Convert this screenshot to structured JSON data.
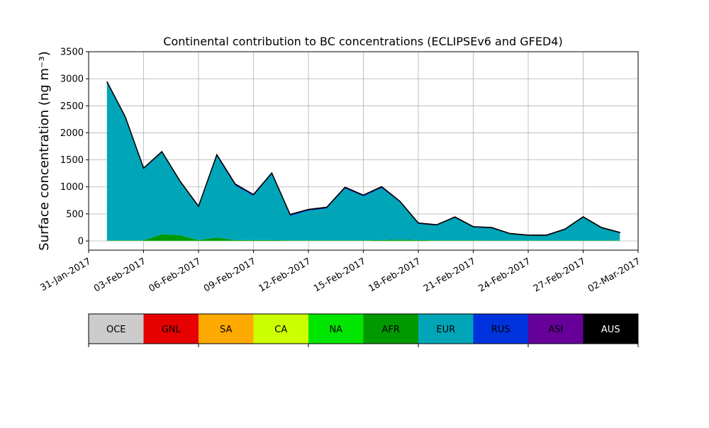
{
  "chart_data": {
    "type": "stacked_area",
    "title": "Continental contribution to BC concentrations (ECLIPSEv6 and GFED4)",
    "y_label": "Surface concentration (ng m⁻³)",
    "x": [
      "2017-02-01",
      "2017-02-02",
      "2017-02-03",
      "2017-02-04",
      "2017-02-05",
      "2017-02-06",
      "2017-02-07",
      "2017-02-08",
      "2017-02-09",
      "2017-02-10",
      "2017-02-11",
      "2017-02-12",
      "2017-02-13",
      "2017-02-14",
      "2017-02-15",
      "2017-02-16",
      "2017-02-17",
      "2017-02-18",
      "2017-02-19",
      "2017-02-20",
      "2017-02-21",
      "2017-02-22",
      "2017-02-23",
      "2017-02-24",
      "2017-02-25",
      "2017-02-26",
      "2017-02-27",
      "2017-02-28",
      "2017-03-01"
    ],
    "series": [
      {
        "name": "OCE",
        "color": "#cccccc",
        "text_color": "#000000",
        "values": [
          0,
          0,
          0,
          0,
          0,
          0,
          0,
          0,
          0,
          0,
          0,
          0,
          0,
          0,
          0,
          0,
          0,
          0,
          0,
          0,
          0,
          0,
          0,
          0,
          0,
          0,
          0,
          0,
          0
        ]
      },
      {
        "name": "GNL",
        "color": "#e60000",
        "text_color": "#000000",
        "values": [
          0,
          0,
          0,
          0,
          0,
          0,
          0,
          0,
          0,
          0,
          0,
          0,
          0,
          0,
          0,
          0,
          0,
          0,
          0,
          0,
          0,
          0,
          0,
          0,
          0,
          0,
          0,
          0,
          0
        ]
      },
      {
        "name": "SA",
        "color": "#ffaa00",
        "text_color": "#000000",
        "values": [
          0,
          0,
          0,
          0,
          0,
          0,
          0,
          0,
          0,
          0,
          0,
          0,
          0,
          0,
          0,
          0,
          0,
          0,
          0,
          0,
          0,
          0,
          0,
          0,
          0,
          0,
          0,
          0,
          0
        ]
      },
      {
        "name": "CA",
        "color": "#ccff00",
        "text_color": "#000000",
        "values": [
          2,
          2,
          2,
          2,
          2,
          2,
          2,
          2,
          2,
          2,
          2,
          2,
          2,
          2,
          2,
          2,
          2,
          2,
          2,
          2,
          2,
          2,
          2,
          2,
          2,
          2,
          2,
          2,
          2
        ]
      },
      {
        "name": "NA",
        "color": "#00e600",
        "text_color": "#000000",
        "values": [
          3,
          3,
          3,
          3,
          3,
          3,
          3,
          3,
          3,
          3,
          3,
          3,
          3,
          3,
          3,
          3,
          3,
          3,
          3,
          3,
          3,
          3,
          3,
          3,
          3,
          3,
          3,
          3,
          3
        ]
      },
      {
        "name": "AFR",
        "color": "#009900",
        "text_color": "#000000",
        "values": [
          5,
          5,
          5,
          120,
          100,
          10,
          60,
          10,
          10,
          10,
          5,
          5,
          5,
          5,
          5,
          10,
          20,
          10,
          5,
          5,
          5,
          3,
          3,
          3,
          3,
          3,
          3,
          3,
          3
        ]
      },
      {
        "name": "EUR",
        "color": "#00a6b8",
        "text_color": "#000000",
        "values": [
          2920,
          2270,
          1320,
          1510,
          980,
          610,
          1500,
          1010,
          820,
          1220,
          450,
          550,
          590,
          960,
          815,
          965,
          690,
          300,
          275,
          420,
          240,
          230,
          120,
          90,
          90,
          200,
          425,
          230,
          140
        ]
      },
      {
        "name": "RUS",
        "color": "#0033dd",
        "text_color": "#000000",
        "values": [
          10,
          10,
          10,
          10,
          10,
          10,
          20,
          20,
          15,
          15,
          20,
          15,
          15,
          15,
          15,
          15,
          10,
          10,
          8,
          8,
          8,
          5,
          5,
          5,
          5,
          5,
          8,
          5,
          5
        ]
      },
      {
        "name": "ASI",
        "color": "#660099",
        "text_color": "#000000",
        "values": [
          5,
          5,
          5,
          5,
          5,
          5,
          8,
          8,
          6,
          6,
          8,
          6,
          6,
          6,
          6,
          6,
          5,
          5,
          4,
          4,
          4,
          3,
          3,
          3,
          3,
          3,
          4,
          3,
          3
        ]
      },
      {
        "name": "AUS",
        "color": "#000000",
        "text_color": "#ffffff",
        "values": [
          3,
          3,
          3,
          3,
          3,
          3,
          3,
          3,
          3,
          3,
          3,
          3,
          3,
          3,
          3,
          3,
          3,
          3,
          3,
          3,
          3,
          3,
          3,
          3,
          3,
          3,
          3,
          3,
          3
        ]
      }
    ],
    "xlim": [
      "2017-01-31",
      "2017-03-02"
    ],
    "xticks": [
      {
        "value": "2017-01-31",
        "label": "31-Jan-2017"
      },
      {
        "value": "2017-02-03",
        "label": "03-Feb-2017"
      },
      {
        "value": "2017-02-06",
        "label": "06-Feb-2017"
      },
      {
        "value": "2017-02-09",
        "label": "09-Feb-2017"
      },
      {
        "value": "2017-02-12",
        "label": "12-Feb-2017"
      },
      {
        "value": "2017-02-15",
        "label": "15-Feb-2017"
      },
      {
        "value": "2017-02-18",
        "label": "18-Feb-2017"
      },
      {
        "value": "2017-02-21",
        "label": "21-Feb-2017"
      },
      {
        "value": "2017-02-24",
        "label": "24-Feb-2017"
      },
      {
        "value": "2017-02-27",
        "label": "27-Feb-2017"
      },
      {
        "value": "2017-03-02",
        "label": "02-Mar-2017"
      }
    ],
    "ylim": [
      -170,
      3500
    ],
    "yticks": [
      0,
      500,
      1000,
      1500,
      2000,
      2500,
      3000,
      3500
    ],
    "grid": true
  }
}
